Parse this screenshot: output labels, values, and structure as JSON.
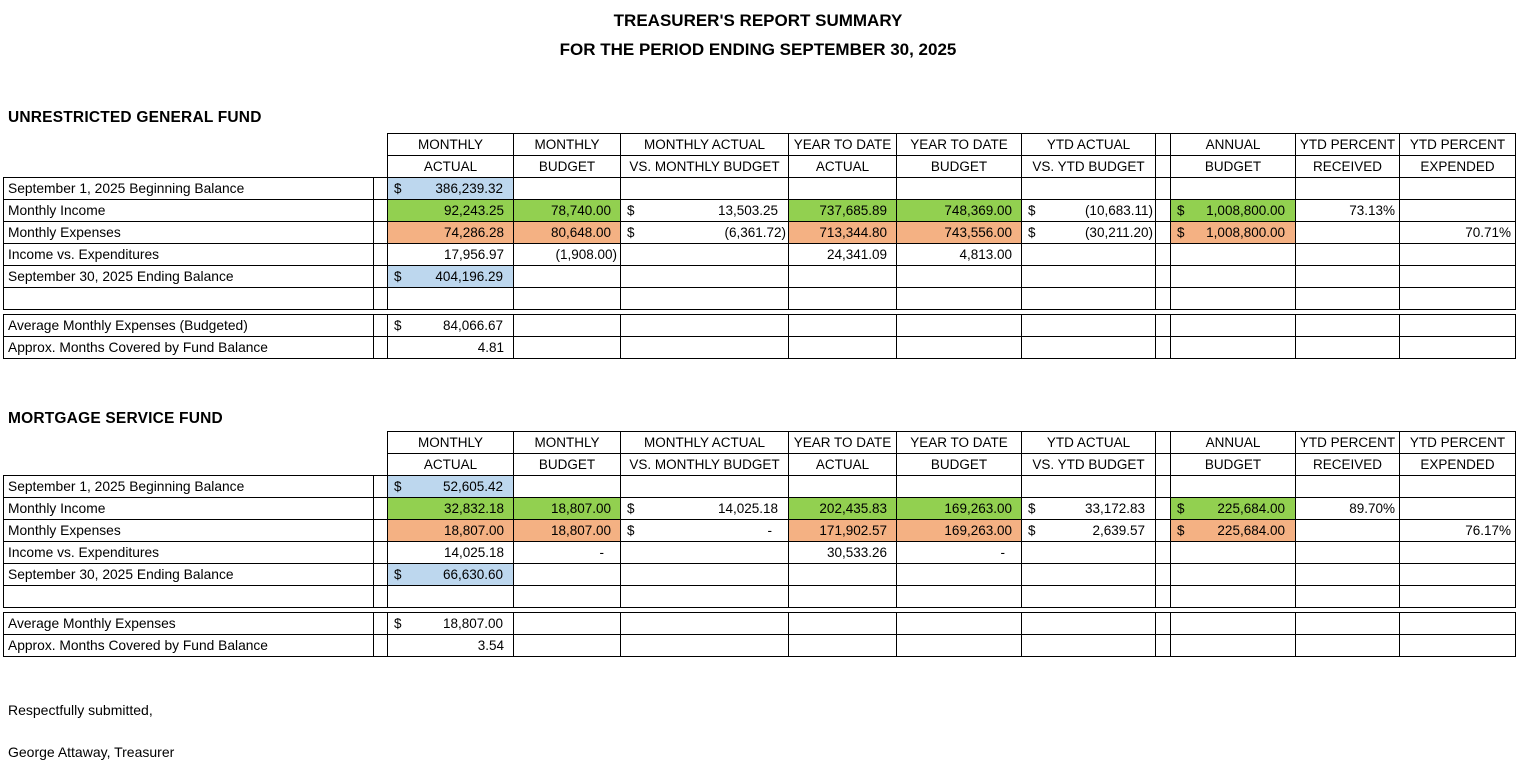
{
  "report": {
    "title_line1": "TREASURER'S REPORT SUMMARY",
    "title_line2": "FOR THE PERIOD ENDING SEPTEMBER 30, 2025"
  },
  "colors": {
    "blue": "#BDD7EE",
    "green": "#92D050",
    "orange": "#F4B183",
    "border": "#000000"
  },
  "column_headers": [
    {
      "line1": "MONTHLY",
      "line2": "ACTUAL"
    },
    {
      "line1": "MONTHLY",
      "line2": "BUDGET"
    },
    {
      "line1": "MONTHLY ACTUAL",
      "line2": "VS. MONTHLY BUDGET"
    },
    {
      "line1": "YEAR TO DATE",
      "line2": "ACTUAL"
    },
    {
      "line1": "YEAR TO DATE",
      "line2": "BUDGET"
    },
    {
      "line1": "YTD ACTUAL",
      "line2": "VS. YTD BUDGET"
    },
    {
      "line1": "ANNUAL",
      "line2": "BUDGET"
    },
    {
      "line1": "YTD PERCENT",
      "line2": "RECEIVED"
    },
    {
      "line1": "YTD PERCENT",
      "line2": "EXPENDED"
    }
  ],
  "sections": [
    {
      "heading": "UNRESTRICTED GENERAL FUND",
      "main_rows": [
        {
          "label": "September 1, 2025 Beginning Balance",
          "cells": [
            {
              "dollar": "$",
              "value": "386,239.32",
              "fill": "blue"
            },
            {},
            {},
            {},
            {},
            {},
            {},
            {},
            {}
          ]
        },
        {
          "label": "Monthly Income",
          "cells": [
            {
              "value": "92,243.25",
              "fill": "green"
            },
            {
              "value": "78,740.00",
              "fill": "green"
            },
            {
              "dollar": "$",
              "value": "13,503.25"
            },
            {
              "value": "737,685.89",
              "fill": "green"
            },
            {
              "value": "748,369.00",
              "fill": "green"
            },
            {
              "dollar": "$",
              "value": "(10,683.11)"
            },
            {
              "dollar": "$",
              "value": "1,008,800.00",
              "fill": "green"
            },
            {
              "value": "73.13%"
            },
            {}
          ]
        },
        {
          "label": "Monthly Expenses",
          "cells": [
            {
              "value": "74,286.28",
              "fill": "orange"
            },
            {
              "value": "80,648.00",
              "fill": "orange"
            },
            {
              "dollar": "$",
              "value": "(6,361.72)"
            },
            {
              "value": "713,344.80",
              "fill": "orange"
            },
            {
              "value": "743,556.00",
              "fill": "orange"
            },
            {
              "dollar": "$",
              "value": "(30,211.20)"
            },
            {
              "dollar": "$",
              "value": "1,008,800.00",
              "fill": "orange"
            },
            {},
            {
              "value": "70.71%"
            }
          ]
        },
        {
          "label": "Income vs. Expenditures",
          "cells": [
            {
              "value": "17,956.97"
            },
            {
              "value": "(1,908.00)"
            },
            {},
            {
              "value": "24,341.09"
            },
            {
              "value": "4,813.00"
            },
            {},
            {},
            {},
            {}
          ]
        },
        {
          "label": "September 30, 2025 Ending Balance",
          "cells": [
            {
              "dollar": "$",
              "value": "404,196.29",
              "fill": "blue"
            },
            {},
            {},
            {},
            {},
            {},
            {},
            {},
            {}
          ]
        },
        {
          "label": "",
          "cells": [
            {},
            {},
            {},
            {},
            {},
            {},
            {},
            {},
            {}
          ]
        }
      ],
      "footer_rows": [
        {
          "label": "Average Monthly Expenses (Budgeted)",
          "cells": [
            {
              "dollar": "$",
              "value": "84,066.67"
            },
            {},
            {},
            {},
            {},
            {},
            {},
            {},
            {}
          ]
        },
        {
          "label": "Approx. Months Covered by Fund Balance",
          "cells": [
            {
              "value": "4.81"
            },
            {},
            {},
            {},
            {},
            {},
            {},
            {},
            {}
          ]
        }
      ]
    },
    {
      "heading": "MORTGAGE SERVICE FUND",
      "main_rows": [
        {
          "label": "September 1, 2025 Beginning Balance",
          "cells": [
            {
              "dollar": "$",
              "value": "52,605.42",
              "fill": "blue"
            },
            {},
            {},
            {},
            {},
            {},
            {},
            {},
            {}
          ]
        },
        {
          "label": "Monthly Income",
          "cells": [
            {
              "value": "32,832.18",
              "fill": "green"
            },
            {
              "value": "18,807.00",
              "fill": "green"
            },
            {
              "dollar": "$",
              "value": "14,025.18"
            },
            {
              "value": "202,435.83",
              "fill": "green"
            },
            {
              "value": "169,263.00",
              "fill": "green"
            },
            {
              "dollar": "$",
              "value": "33,172.83"
            },
            {
              "dollar": "$",
              "value": "225,684.00",
              "fill": "green"
            },
            {
              "value": "89.70%"
            },
            {}
          ]
        },
        {
          "label": "Monthly Expenses",
          "cells": [
            {
              "value": "18,807.00",
              "fill": "orange"
            },
            {
              "value": "18,807.00",
              "fill": "orange"
            },
            {
              "dollar": "$",
              "value": "-",
              "dash": true
            },
            {
              "value": "171,902.57",
              "fill": "orange"
            },
            {
              "value": "169,263.00",
              "fill": "orange"
            },
            {
              "dollar": "$",
              "value": "2,639.57"
            },
            {
              "dollar": "$",
              "value": "225,684.00",
              "fill": "orange"
            },
            {},
            {
              "value": "76.17%"
            }
          ]
        },
        {
          "label": "Income vs. Expenditures",
          "cells": [
            {
              "value": "14,025.18"
            },
            {
              "value": "-",
              "dash": true
            },
            {},
            {
              "value": "30,533.26"
            },
            {
              "value": "-",
              "dash": true
            },
            {},
            {},
            {},
            {}
          ]
        },
        {
          "label": "September 30, 2025 Ending Balance",
          "cells": [
            {
              "dollar": "$",
              "value": "66,630.60",
              "fill": "blue"
            },
            {},
            {},
            {},
            {},
            {},
            {},
            {},
            {}
          ]
        },
        {
          "label": "",
          "cells": [
            {},
            {},
            {},
            {},
            {},
            {},
            {},
            {},
            {}
          ]
        }
      ],
      "footer_rows": [
        {
          "label": "Average Monthly Expenses",
          "cells": [
            {
              "dollar": "$",
              "value": "18,807.00"
            },
            {},
            {},
            {},
            {},
            {},
            {},
            {},
            {}
          ]
        },
        {
          "label": "Approx. Months Covered by Fund Balance",
          "cells": [
            {
              "value": "3.54"
            },
            {},
            {},
            {},
            {},
            {},
            {},
            {},
            {}
          ]
        }
      ]
    }
  ],
  "signature": {
    "line1": "Respectfully submitted,",
    "line2": "George Attaway, Treasurer"
  }
}
